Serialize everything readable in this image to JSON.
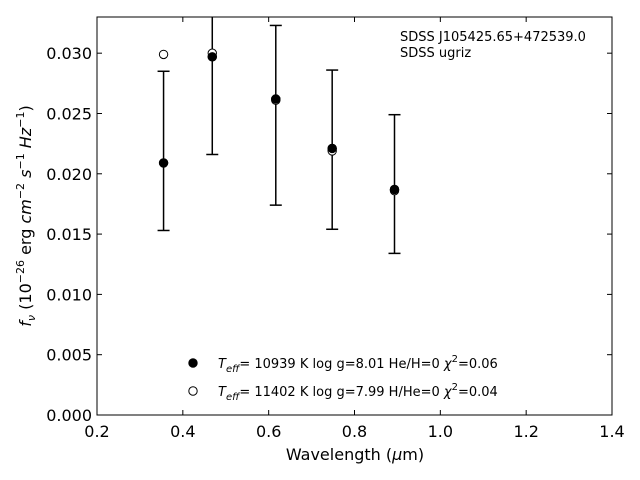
{
  "chart_data": {
    "type": "scatter",
    "xlabel": "Wavelength (μm)",
    "ylabel": "fν (10⁻²⁶ erg cm⁻² s⁻¹ Hz⁻¹)",
    "xlim": [
      0.2,
      1.4
    ],
    "ylim": [
      0.0,
      0.033
    ],
    "x_ticks": [
      "0.2",
      "0.4",
      "0.6",
      "0.8",
      "1.0",
      "1.2",
      "1.4"
    ],
    "y_ticks": [
      "0.000",
      "0.005",
      "0.010",
      "0.015",
      "0.020",
      "0.025",
      "0.030"
    ],
    "annotations": [
      "SDSS J105425.65+472539.0",
      "SDSS ugriz"
    ],
    "observed": {
      "x": [
        0.3551,
        0.4686,
        0.6166,
        0.748,
        0.8932
      ],
      "y": [
        0.0209,
        0.0297,
        0.0262,
        0.0221,
        0.0187
      ],
      "yerr_low": [
        0.0153,
        0.0216,
        0.0174,
        0.0154,
        0.0134
      ],
      "yerr_high": [
        0.0285,
        0.0335,
        0.0323,
        0.0286,
        0.0249
      ]
    },
    "series": [
      {
        "name": "T_eff= 10939 K  log g=8.01  He/H=0  χ²=0.06",
        "marker": "filled-circle",
        "x": [
          0.3551,
          0.4686,
          0.6166,
          0.748,
          0.8932
        ],
        "y": [
          0.0209,
          0.0297,
          0.0262,
          0.0221,
          0.0187
        ]
      },
      {
        "name": "T_eff= 11402 K  log g=7.99  H/He=0  χ²=0.04",
        "marker": "open-circle",
        "x": [
          0.3551,
          0.4686,
          0.6166,
          0.748,
          0.8932
        ],
        "y": [
          0.0299,
          0.03,
          0.0261,
          0.0219,
          0.0186
        ]
      }
    ],
    "legend": {
      "entries": [
        {
          "prefix": "T",
          "sub": "eff",
          "text": "= 10939 K  log g=8.01  He/H=0  ",
          "chi": "χ",
          "sup": "2",
          "tail": "=0.06"
        },
        {
          "prefix": "T",
          "sub": "eff",
          "text": "= 11402 K  log g=7.99  H/He=0  ",
          "chi": "χ",
          "sup": "2",
          "tail": "=0.04"
        }
      ],
      "placement": "lower-center"
    },
    "colors": {
      "marker": "#000000",
      "axes": "#000000"
    }
  }
}
